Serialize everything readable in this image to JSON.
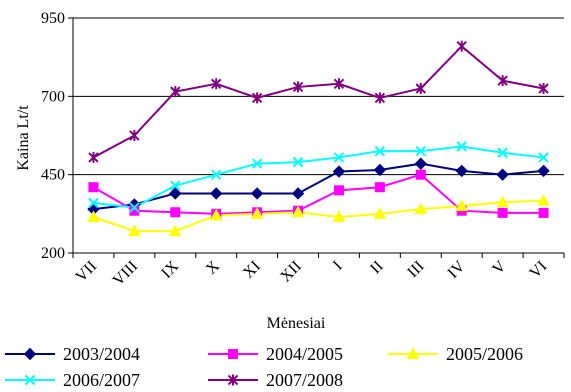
{
  "chart_data": {
    "type": "line",
    "title": "",
    "xlabel": "Mėnesiai",
    "ylabel": "Kaina Lt/t",
    "ylim": [
      200,
      950
    ],
    "yticks": [
      200,
      450,
      700,
      950
    ],
    "grid": true,
    "legend_position": "bottom",
    "categories": [
      "VII",
      "VIII",
      "IX",
      "X",
      "XI",
      "XII",
      "I",
      "II",
      "III",
      "IV",
      "V",
      "VI"
    ],
    "series": [
      {
        "name": "2003/2004",
        "color": "#000080",
        "marker": "diamond",
        "values": [
          340,
          355,
          390,
          390,
          390,
          390,
          460,
          465,
          485,
          462,
          450,
          462
        ]
      },
      {
        "name": "2004/2005",
        "color": "#ff00ff",
        "marker": "square",
        "values": [
          410,
          335,
          330,
          325,
          330,
          335,
          400,
          410,
          450,
          335,
          328,
          328
        ]
      },
      {
        "name": "2005/2006",
        "color": "#ffff00",
        "marker": "triangle",
        "values": [
          315,
          270,
          270,
          320,
          325,
          330,
          315,
          325,
          340,
          350,
          362,
          367
        ]
      },
      {
        "name": "2006/2007",
        "color": "#00ffff",
        "marker": "x",
        "values": [
          360,
          345,
          415,
          450,
          485,
          490,
          505,
          525,
          525,
          540,
          520,
          505
        ]
      },
      {
        "name": "2007/2008",
        "color": "#800080",
        "marker": "star",
        "values": [
          505,
          575,
          715,
          740,
          695,
          730,
          740,
          695,
          725,
          860,
          750,
          725
        ]
      }
    ]
  }
}
